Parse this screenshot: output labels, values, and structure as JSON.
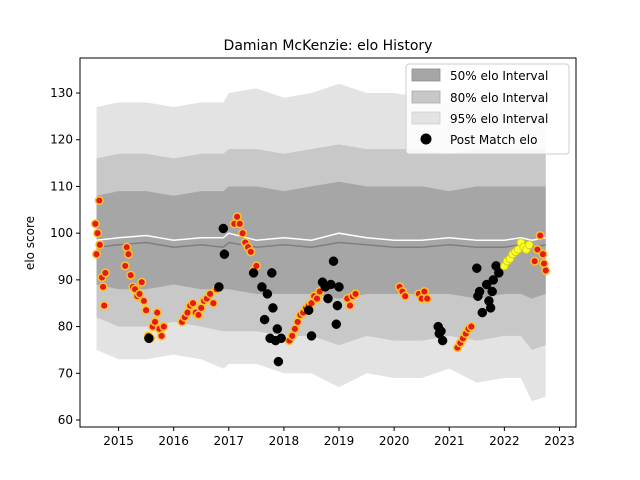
{
  "chart_data": {
    "type": "scatter",
    "title": "Damian McKenzie: elo History",
    "xlabel": "",
    "ylabel": "elo score",
    "xlim": [
      2014.3,
      2023.3
    ],
    "ylim": [
      58.5,
      137.5
    ],
    "x_ticks": [
      2015,
      2016,
      2017,
      2018,
      2019,
      2020,
      2021,
      2022,
      2023
    ],
    "y_ticks": [
      60,
      70,
      80,
      90,
      100,
      110,
      120,
      130
    ],
    "legend": {
      "position": "top-right",
      "entries": [
        "50% elo Interval",
        "80% elo Interval",
        "95% elo Interval",
        "Post Match elo"
      ]
    },
    "colors": {
      "band50": "#a6a6a6",
      "band80": "#c8c8c8",
      "band95": "#e3e3e3",
      "median_line": "#7f7f7f",
      "mean_line": "#ffffff",
      "point_black": "#000000",
      "point_red_fill": "#e41a1c",
      "point_red_edge": "#ffc125",
      "point_yellow_fill": "#ffff33",
      "point_yellow_edge": "#d4d400"
    },
    "bands": {
      "x": [
        2014.6,
        2015.0,
        2015.5,
        2016.0,
        2016.5,
        2016.9,
        2017.0,
        2017.5,
        2018.0,
        2018.5,
        2019.0,
        2019.5,
        2020.0,
        2020.5,
        2021.0,
        2021.5,
        2022.0,
        2022.3,
        2022.5,
        2022.75
      ],
      "p95_low": [
        75,
        73,
        73,
        74,
        73,
        71,
        72,
        72,
        70,
        70,
        67,
        70,
        69,
        69,
        71,
        68,
        69,
        69,
        64,
        65
      ],
      "p95_high": [
        127,
        128,
        128,
        127,
        128,
        128,
        130,
        131,
        129,
        130,
        132,
        130,
        130,
        129,
        128,
        129,
        130,
        130,
        131,
        130
      ],
      "p80_low": [
        82,
        80,
        80,
        81,
        80,
        79,
        79,
        79,
        78,
        78,
        76,
        78,
        77,
        77,
        78,
        77,
        78,
        78,
        75,
        76
      ],
      "p80_high": [
        116,
        117,
        117,
        116,
        117,
        117,
        118,
        118,
        117,
        118,
        119,
        118,
        118,
        118,
        117,
        118,
        118,
        118,
        118,
        118
      ],
      "p50_low": [
        89,
        88,
        88,
        89,
        88,
        88,
        88,
        87,
        87,
        87,
        86,
        87,
        87,
        87,
        87,
        86,
        87,
        87,
        86,
        87
      ],
      "p50_high": [
        108,
        109,
        109,
        108,
        109,
        109,
        110,
        110,
        109,
        110,
        111,
        110,
        110,
        110,
        109,
        110,
        110,
        110,
        110,
        110
      ],
      "median": [
        97,
        97.5,
        98,
        97,
        97.5,
        97,
        98,
        97,
        97.5,
        97,
        98,
        97.5,
        97,
        97,
        97.5,
        97,
        97,
        97.5,
        97,
        97.5
      ],
      "mean": [
        98.5,
        99,
        99.5,
        98.5,
        99,
        99,
        100,
        98.5,
        99,
        98.5,
        100,
        99,
        98.5,
        98.5,
        99,
        98.5,
        98.5,
        99,
        98.5,
        99
      ]
    },
    "series": [
      {
        "name": "Post Match elo (red)",
        "style": "red",
        "points": [
          [
            2014.58,
            102
          ],
          [
            2014.6,
            95.5
          ],
          [
            2014.62,
            100
          ],
          [
            2014.65,
            107
          ],
          [
            2014.66,
            97.5
          ],
          [
            2014.7,
            90.5
          ],
          [
            2014.72,
            88.5
          ],
          [
            2014.74,
            84.5
          ],
          [
            2014.76,
            91.5
          ],
          [
            2015.12,
            93
          ],
          [
            2015.15,
            97
          ],
          [
            2015.18,
            95.5
          ],
          [
            2015.22,
            91
          ],
          [
            2015.26,
            88.5
          ],
          [
            2015.3,
            88
          ],
          [
            2015.34,
            86.5
          ],
          [
            2015.38,
            87
          ],
          [
            2015.42,
            89.5
          ],
          [
            2015.46,
            85.5
          ],
          [
            2015.5,
            83.5
          ],
          [
            2015.54,
            78
          ],
          [
            2015.58,
            77.5
          ],
          [
            2015.62,
            80
          ],
          [
            2015.66,
            81
          ],
          [
            2015.7,
            83
          ],
          [
            2015.74,
            79.5
          ],
          [
            2015.78,
            78
          ],
          [
            2015.82,
            80
          ],
          [
            2016.15,
            81
          ],
          [
            2016.2,
            82
          ],
          [
            2016.25,
            83
          ],
          [
            2016.3,
            84.5
          ],
          [
            2016.35,
            85
          ],
          [
            2016.4,
            83
          ],
          [
            2016.45,
            82.5
          ],
          [
            2016.5,
            84
          ],
          [
            2016.55,
            85.5
          ],
          [
            2016.6,
            86
          ],
          [
            2016.66,
            87
          ],
          [
            2016.72,
            85
          ],
          [
            2016.78,
            88
          ],
          [
            2017.1,
            102
          ],
          [
            2017.15,
            103.5
          ],
          [
            2017.2,
            102
          ],
          [
            2017.25,
            100
          ],
          [
            2017.3,
            98
          ],
          [
            2017.35,
            97
          ],
          [
            2017.4,
            96
          ],
          [
            2017.45,
            92
          ],
          [
            2017.5,
            93
          ],
          [
            2018.1,
            77
          ],
          [
            2018.15,
            78
          ],
          [
            2018.2,
            79.5
          ],
          [
            2018.25,
            81
          ],
          [
            2018.3,
            82.5
          ],
          [
            2018.35,
            83
          ],
          [
            2018.4,
            84
          ],
          [
            2018.45,
            84.5
          ],
          [
            2018.5,
            85
          ],
          [
            2018.55,
            86.5
          ],
          [
            2018.6,
            86
          ],
          [
            2018.65,
            87.5
          ],
          [
            2019.15,
            86
          ],
          [
            2019.2,
            84.5
          ],
          [
            2019.25,
            86.5
          ],
          [
            2019.3,
            87
          ],
          [
            2020.1,
            88.5
          ],
          [
            2020.15,
            87.5
          ],
          [
            2020.2,
            86.5
          ],
          [
            2020.45,
            87
          ],
          [
            2020.5,
            86
          ],
          [
            2020.55,
            87.5
          ],
          [
            2020.6,
            86
          ],
          [
            2021.15,
            75.5
          ],
          [
            2021.2,
            76.5
          ],
          [
            2021.25,
            77.5
          ],
          [
            2021.3,
            78.5
          ],
          [
            2021.35,
            79.5
          ],
          [
            2021.4,
            80
          ],
          [
            2022.55,
            94
          ],
          [
            2022.6,
            96.5
          ],
          [
            2022.65,
            99.5
          ],
          [
            2022.7,
            95.5
          ],
          [
            2022.72,
            93.5
          ],
          [
            2022.75,
            92
          ]
        ]
      },
      {
        "name": "Post Match elo (black)",
        "style": "black",
        "points": [
          [
            2015.55,
            77.5
          ],
          [
            2016.82,
            88.5
          ],
          [
            2016.9,
            101
          ],
          [
            2016.92,
            95.5
          ],
          [
            2017.45,
            91.5
          ],
          [
            2017.6,
            88.5
          ],
          [
            2017.65,
            81.5
          ],
          [
            2017.7,
            87
          ],
          [
            2017.75,
            77.5
          ],
          [
            2017.78,
            91.5
          ],
          [
            2017.8,
            84
          ],
          [
            2017.85,
            77
          ],
          [
            2017.88,
            79.5
          ],
          [
            2017.9,
            72.5
          ],
          [
            2017.95,
            77.5
          ],
          [
            2018.45,
            83.5
          ],
          [
            2018.5,
            78
          ],
          [
            2018.7,
            89.5
          ],
          [
            2018.75,
            88.5
          ],
          [
            2018.8,
            86
          ],
          [
            2018.85,
            89
          ],
          [
            2018.9,
            94
          ],
          [
            2018.95,
            80.5
          ],
          [
            2018.97,
            84.5
          ],
          [
            2019.0,
            88.5
          ],
          [
            2020.8,
            80
          ],
          [
            2020.82,
            78.5
          ],
          [
            2020.88,
            77
          ],
          [
            2020.85,
            79
          ],
          [
            2021.5,
            92.5
          ],
          [
            2021.52,
            86.5
          ],
          [
            2021.55,
            87.5
          ],
          [
            2021.6,
            83
          ],
          [
            2021.68,
            89
          ],
          [
            2021.72,
            85.5
          ],
          [
            2021.75,
            84
          ],
          [
            2021.78,
            87.5
          ],
          [
            2021.8,
            90
          ],
          [
            2021.85,
            93
          ],
          [
            2021.9,
            91.5
          ]
        ]
      },
      {
        "name": "Post Match elo (yellow)",
        "style": "yellow",
        "points": [
          [
            2022.0,
            93
          ],
          [
            2022.05,
            94
          ],
          [
            2022.1,
            94.5
          ],
          [
            2022.15,
            95.5
          ],
          [
            2022.2,
            96
          ],
          [
            2022.25,
            96.5
          ],
          [
            2022.3,
            98
          ],
          [
            2022.35,
            97
          ],
          [
            2022.4,
            96.5
          ],
          [
            2022.45,
            97.5
          ]
        ]
      }
    ]
  }
}
